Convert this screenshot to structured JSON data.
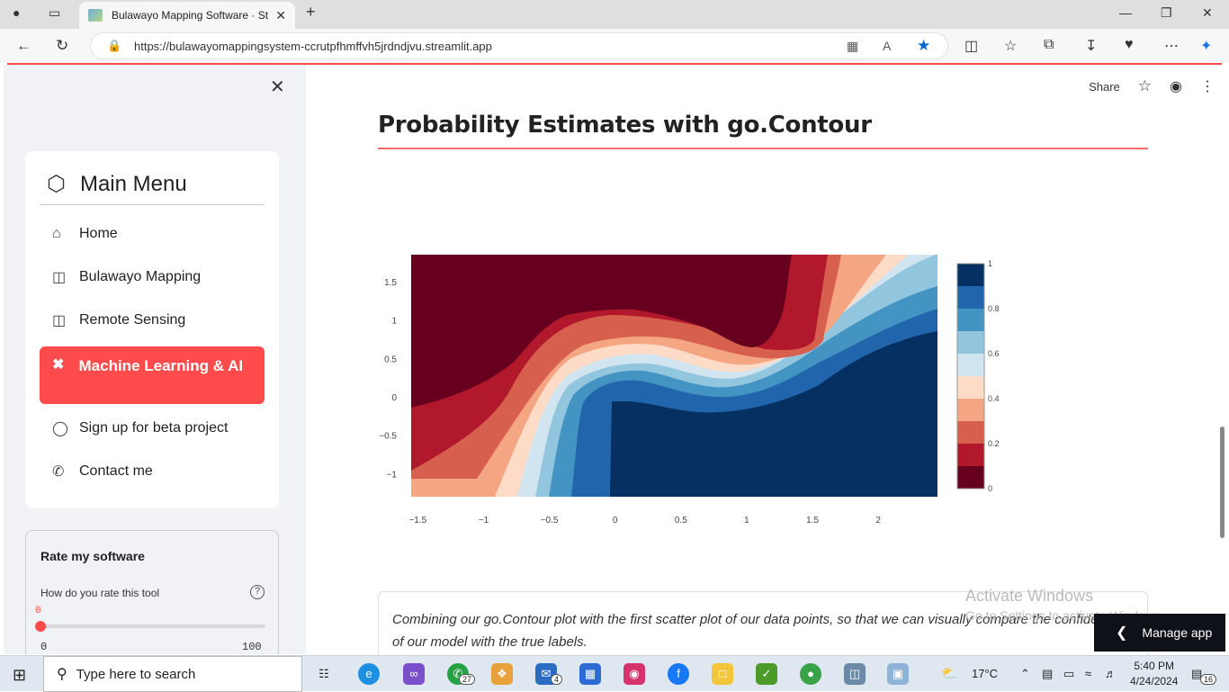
{
  "browser": {
    "tab_title": "Bulawayo Mapping Software · St",
    "url": "https://bulawayomappingsystem-ccrutpfhmffvh5jrdndjvu.streamlit.app"
  },
  "sidebar": {
    "menu_title": "Main Menu",
    "items": [
      {
        "label": "Home",
        "icon": "house-icon",
        "active": false
      },
      {
        "label": "Bulawayo Mapping",
        "icon": "map-icon",
        "active": false
      },
      {
        "label": "Remote Sensing",
        "icon": "map-icon",
        "active": false
      },
      {
        "label": "Machine Learning & AI",
        "icon": "tools-icon",
        "active": true
      },
      {
        "label": "Sign up for beta project",
        "icon": "gamepad-icon",
        "active": false
      },
      {
        "label": "Contact me",
        "icon": "phone-icon",
        "active": false
      }
    ],
    "rating": {
      "title": "Rate my software",
      "question": "How do you rate this tool",
      "value": "0",
      "min": "0",
      "max": "100"
    }
  },
  "toolbar": {
    "share_label": "Share"
  },
  "main": {
    "heading": "Probability Estimates with go.Contour",
    "description": "Combining our go.Contour plot with the first scatter plot of our data points, so that we can visually compare the confidence of our model with the true labels.",
    "watermark_title": "Activate Windows",
    "watermark_sub": "Go to Settings to activate Windows.",
    "manage_app": "Manage app"
  },
  "chart_data": {
    "type": "heatmap",
    "subtype": "contour",
    "x_ticks": [
      "−1.5",
      "−1",
      "−0.5",
      "0",
      "0.5",
      "1",
      "1.5",
      "2"
    ],
    "y_ticks": [
      "1.5",
      "1",
      "0.5",
      "0",
      "−0.5",
      "−1"
    ],
    "xlim": [
      -1.55,
      2.45
    ],
    "ylim": [
      -1.3,
      1.85
    ],
    "colorbar": {
      "ticks": [
        "1",
        "0.8",
        "0.6",
        "0.4",
        "0.2",
        "0"
      ],
      "range": [
        0,
        1
      ],
      "colors": [
        "#67001f",
        "#b2182b",
        "#d6604d",
        "#f4a582",
        "#fddbc7",
        "#e8eef5",
        "#d1e5f0",
        "#92c5de",
        "#4393c3",
        "#2166ac",
        "#053061"
      ]
    }
  },
  "taskbar": {
    "search_placeholder": "Type here to search",
    "whatsapp_badge": "27",
    "mail_badge": "4",
    "weather": "17°C",
    "time": "5:40 PM",
    "date": "4/24/2024",
    "notifications": "16"
  }
}
